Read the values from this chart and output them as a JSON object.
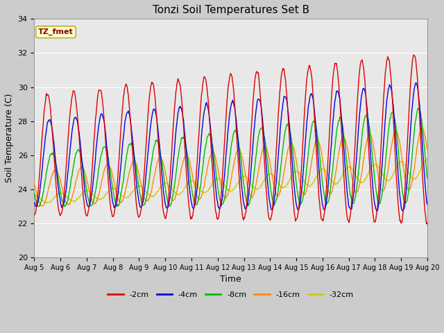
{
  "title": "Tonzi Soil Temperatures Set B",
  "xlabel": "Time",
  "ylabel": "Soil Temperature (C)",
  "ylim": [
    20,
    34
  ],
  "n_days": 15,
  "samples_per_day": 48,
  "series_colors": {
    "-2cm": "#dd0000",
    "-4cm": "#0000dd",
    "-8cm": "#00bb00",
    "-16cm": "#ff8800",
    "-32cm": "#cccc00"
  },
  "annotation_text": "TZ_fmet",
  "annotation_bg": "#ffffcc",
  "annotation_border": "#aaaa00",
  "annotation_text_color": "#880000",
  "x_tick_labels": [
    "Aug 5",
    "Aug 6",
    "Aug 7",
    "Aug 8",
    "Aug 9",
    "Aug 10",
    "Aug 11",
    "Aug 12",
    "Aug 13",
    "Aug 14",
    "Aug 15",
    "Aug 16",
    "Aug 17",
    "Aug 18",
    "Aug 19",
    "Aug 20"
  ],
  "fig_bg": "#cccccc",
  "plot_bg": "#e8e8e8",
  "grid_color": "#ffffff",
  "spine_color": "#999999"
}
